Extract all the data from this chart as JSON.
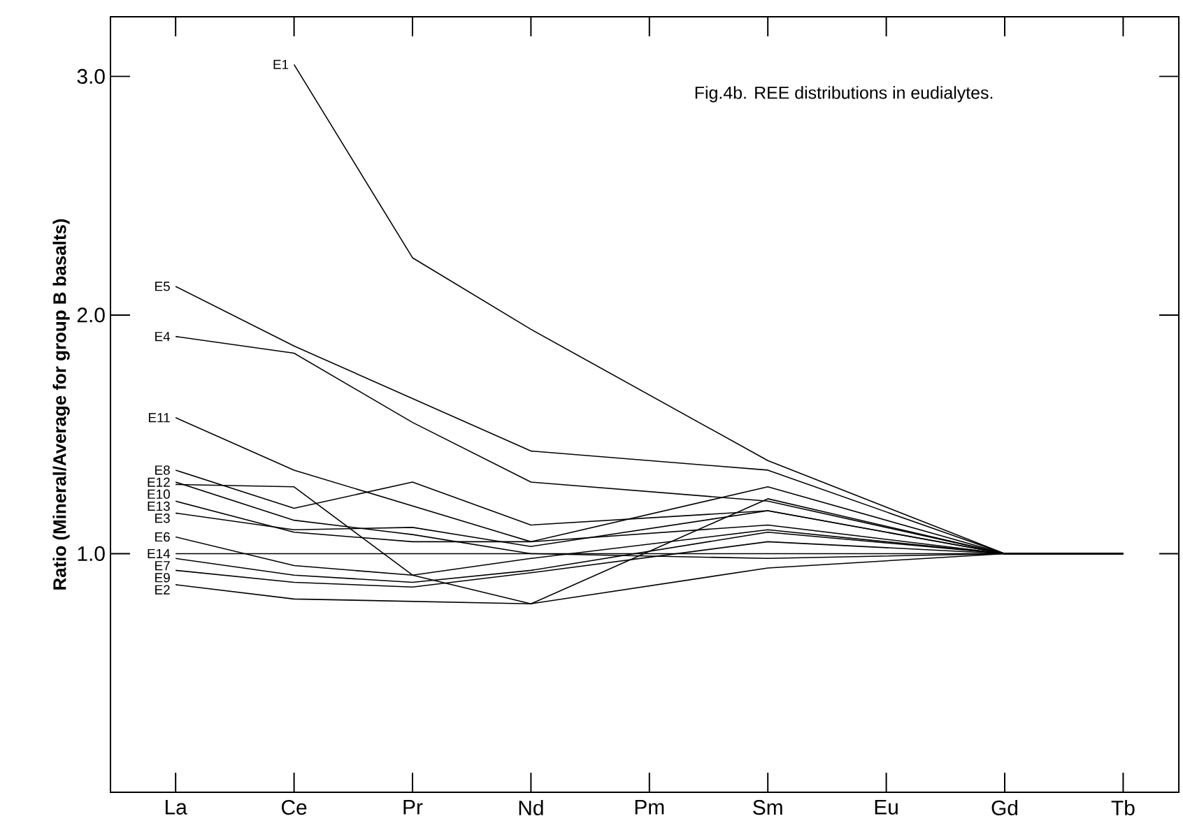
{
  "chart_data": {
    "type": "line",
    "title": "Fig.4b. REE distributions in eudialytes.",
    "ylabel": "Ratio (Mineral/Average for group B basalts)",
    "categories": [
      "La",
      "Ce",
      "Pr",
      "Nd",
      "Pm",
      "Sm",
      "Eu",
      "Gd",
      "Tb"
    ],
    "ylim": [
      0,
      3.25
    ],
    "yticks": [
      {
        "value": 1,
        "label": "1.0"
      },
      {
        "value": 2,
        "label": "2.0"
      },
      {
        "value": 3,
        "label": "3.0"
      }
    ],
    "series": [
      {
        "name": "E1",
        "color": "#000000",
        "values": [
          null,
          3.05,
          2.24,
          1.94,
          null,
          1.39,
          null,
          1,
          1
        ]
      },
      {
        "name": "E2",
        "color": "#000000",
        "values": [
          0.87,
          0.81,
          0.8,
          0.79,
          null,
          0.94,
          null,
          1,
          1
        ]
      },
      {
        "name": "E3",
        "color": "#000000",
        "values": [
          1.17,
          1.1,
          1.11,
          1.03,
          null,
          1.18,
          null,
          1,
          1
        ]
      },
      {
        "name": "E4",
        "color": "#000000",
        "values": [
          1.91,
          1.84,
          1.55,
          1.3,
          null,
          1.22,
          null,
          1,
          1
        ]
      },
      {
        "name": "E5",
        "color": "#000000",
        "values": [
          2.12,
          1.87,
          1.65,
          1.43,
          null,
          1.35,
          null,
          1,
          1
        ]
      },
      {
        "name": "E6",
        "color": "#000000",
        "values": [
          1.07,
          0.95,
          0.91,
          0.98,
          null,
          1.1,
          null,
          1,
          1
        ]
      },
      {
        "name": "E7",
        "color": "#000000",
        "values": [
          0.98,
          0.91,
          0.88,
          0.93,
          null,
          1.09,
          null,
          1,
          1
        ]
      },
      {
        "name": "E8",
        "color": "#000000",
        "values": [
          1.35,
          1.19,
          1.3,
          1.12,
          null,
          1.18,
          null,
          1,
          1
        ]
      },
      {
        "name": "E9",
        "color": "#000000",
        "values": [
          0.93,
          0.88,
          0.86,
          0.92,
          null,
          1.05,
          null,
          1,
          1
        ]
      },
      {
        "name": "E10",
        "color": "#000000",
        "values": [
          1.29,
          1.28,
          0.91,
          0.79,
          null,
          1.23,
          null,
          1,
          1
        ]
      },
      {
        "name": "E11",
        "color": "#000000",
        "values": [
          1.57,
          1.35,
          1.2,
          1.05,
          null,
          1.28,
          null,
          1,
          1
        ]
      },
      {
        "name": "E12",
        "color": "#000000",
        "values": [
          1.3,
          1.14,
          1.08,
          1.0,
          null,
          0.98,
          null,
          1,
          1
        ]
      },
      {
        "name": "E13",
        "color": "#000000",
        "values": [
          1.22,
          1.09,
          1.05,
          1.05,
          null,
          1.12,
          null,
          1,
          1
        ]
      },
      {
        "name": "E14",
        "color": "#000000",
        "values": [
          1.0,
          1.0,
          1.0,
          1.0,
          null,
          1.0,
          null,
          1,
          1
        ]
      }
    ]
  }
}
